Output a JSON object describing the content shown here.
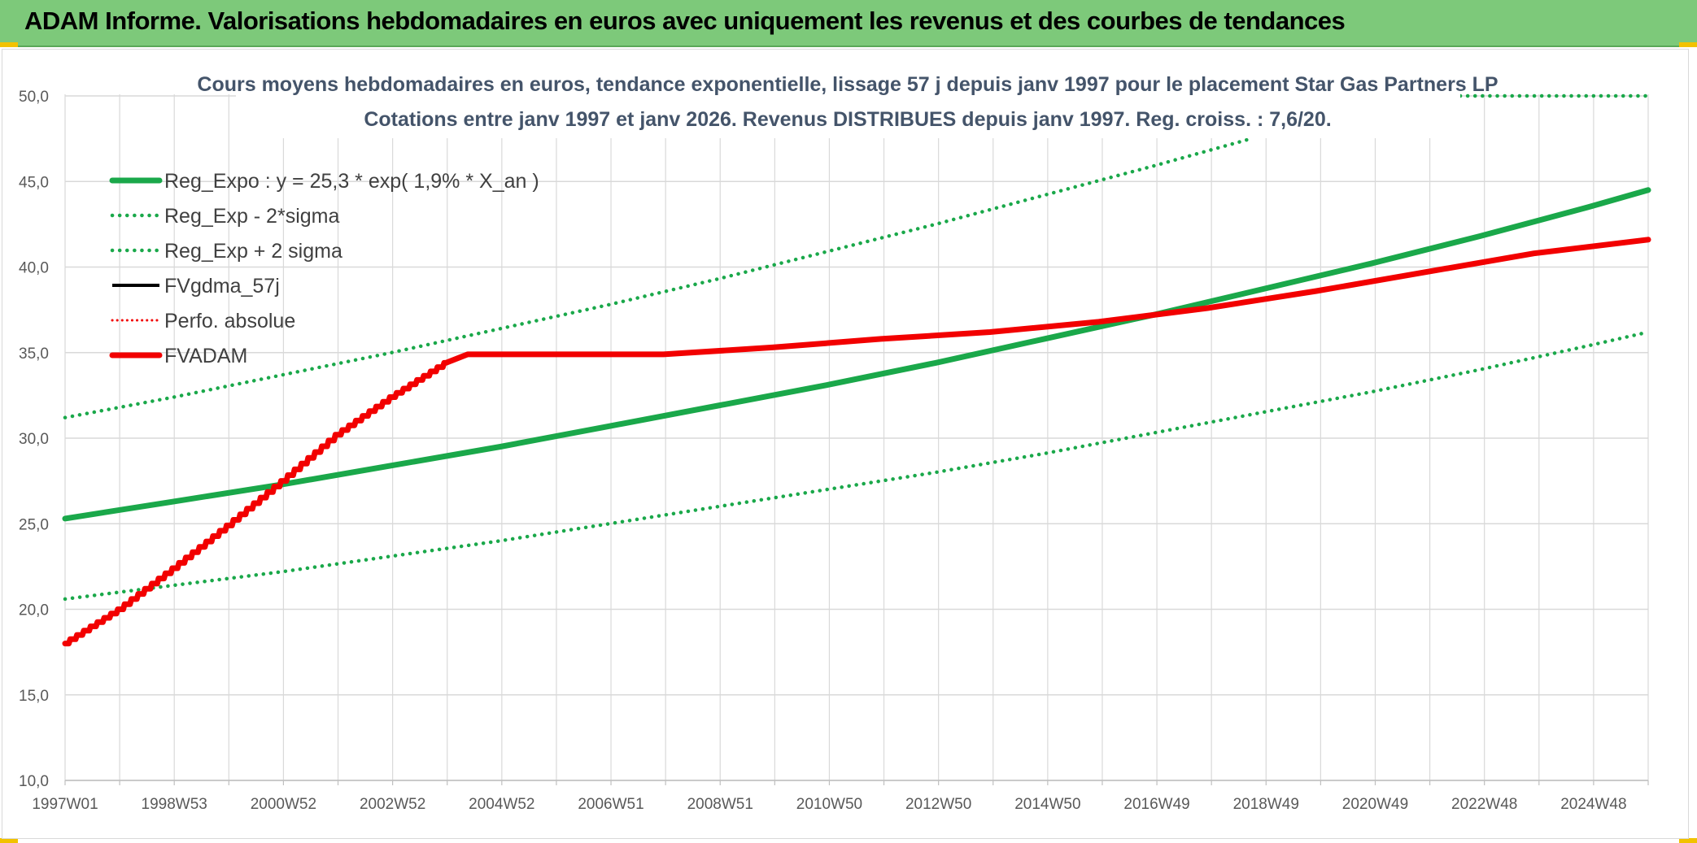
{
  "banner": {
    "title": "ADAM Informe. Valorisations hebdomadaires en euros avec uniquement les revenus et des courbes de tendances"
  },
  "colors": {
    "banner": "#7dc97a",
    "trend_green": "#1aa84a",
    "fvadam_red": "#f20000",
    "fvgdma_black": "#000000",
    "grid": "#d9d9d9"
  },
  "chart_data": {
    "type": "line",
    "title": "Cours moyens hebdomadaires en euros, tendance exponentielle, lissage 57 j depuis janv 1997 pour le placement Star Gas Partners LP",
    "subtitle": "Cotations entre janv 1997 et janv 2026. Revenus DISTRIBUES depuis janv 1997. Reg. croiss. : 7,6/20.",
    "x_tick_labels": [
      "1997W01",
      "1998W53",
      "2000W52",
      "2002W52",
      "2004W52",
      "2006W51",
      "2008W51",
      "2010W50",
      "2012W50",
      "2014W50",
      "2016W49",
      "2018W49",
      "2020W49",
      "2022W48",
      "2024W48"
    ],
    "x_range": [
      1997.0,
      2026.1
    ],
    "ylim": [
      10.0,
      50.0
    ],
    "y_ticks": [
      "10,0",
      "15,0",
      "20,0",
      "25,0",
      "30,0",
      "35,0",
      "40,0",
      "45,0",
      "50,0"
    ],
    "grid": true,
    "legend_position": "top-left",
    "series": [
      {
        "name": "Reg_Expo : y = 25,3 * exp( 1,9% *  X_an )",
        "style": "solid-green",
        "x": [
          1997.0,
          1999.0,
          2001.0,
          2003.0,
          2005.0,
          2007.0,
          2009.0,
          2011.0,
          2013.0,
          2015.0,
          2017.0,
          2019.0,
          2021.0,
          2023.0,
          2025.0,
          2026.1
        ],
        "values": [
          25.3,
          26.3,
          27.3,
          28.4,
          29.5,
          30.7,
          31.9,
          33.1,
          34.4,
          35.8,
          37.2,
          38.7,
          40.2,
          41.8,
          43.5,
          44.5
        ]
      },
      {
        "name": "Reg_Exp - 2*sigma",
        "style": "dotted-green",
        "x": [
          1997.0,
          1999.0,
          2001.0,
          2003.0,
          2005.0,
          2007.0,
          2009.0,
          2011.0,
          2013.0,
          2015.0,
          2017.0,
          2019.0,
          2021.0,
          2023.0,
          2025.0,
          2026.1
        ],
        "values": [
          20.6,
          21.4,
          22.2,
          23.1,
          24.0,
          25.0,
          26.0,
          27.0,
          28.0,
          29.1,
          30.3,
          31.5,
          32.7,
          34.0,
          35.4,
          36.2
        ]
      },
      {
        "name": "Reg_Exp + 2 sigma",
        "style": "dotted-green",
        "x": [
          1997.0,
          1999.0,
          2001.0,
          2003.0,
          2005.0,
          2007.0,
          2009.0,
          2011.0,
          2013.0,
          2015.0,
          2017.0,
          2018.8
        ],
        "values": [
          31.2,
          32.4,
          33.7,
          35.0,
          36.4,
          37.8,
          39.3,
          40.9,
          42.5,
          44.2,
          45.9,
          47.5
        ]
      },
      {
        "name": "FVgdma_57j",
        "style": "solid-black",
        "x": [],
        "values": []
      },
      {
        "name": "Perfo. absolue",
        "style": "dotted-red",
        "x": [],
        "values": []
      },
      {
        "name": "FVADAM",
        "style": "solid-red",
        "x": [
          1997.0,
          1998.0,
          1999.0,
          2000.0,
          2001.0,
          2002.0,
          2003.0,
          2004.0,
          2004.4,
          2008.0,
          2008.5,
          2010.0,
          2012.0,
          2014.0,
          2016.0,
          2018.0,
          2020.0,
          2022.0,
          2024.0,
          2026.1
        ],
        "values": [
          18.0,
          20.0,
          22.4,
          24.9,
          27.5,
          30.2,
          32.4,
          34.4,
          34.9,
          34.9,
          35.0,
          35.3,
          35.8,
          36.2,
          36.8,
          37.6,
          38.6,
          39.7,
          40.8,
          41.6
        ]
      }
    ]
  }
}
